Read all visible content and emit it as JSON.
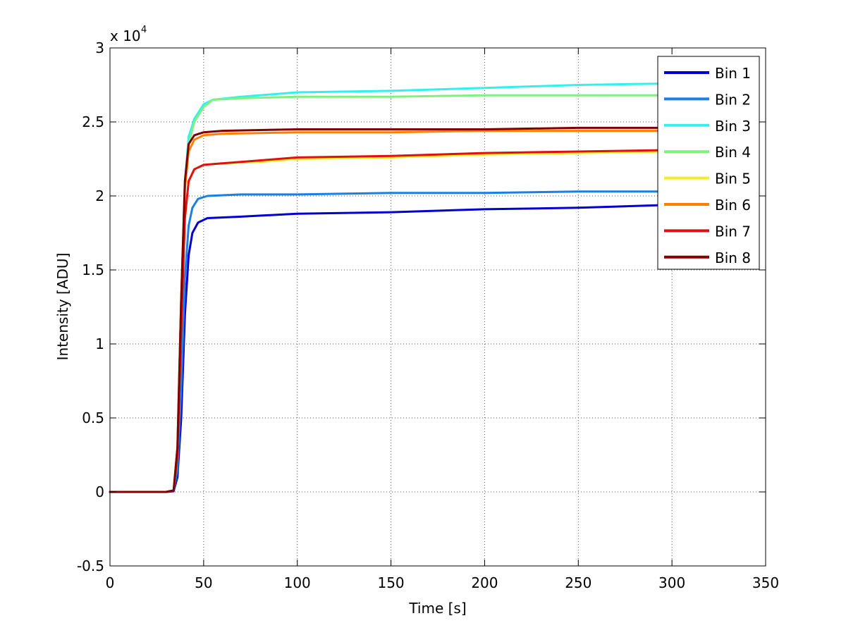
{
  "chart_data": {
    "type": "line",
    "xlabel": "Time [s]",
    "ylabel": "Intensity [ADU]",
    "exponent_label": "x 10",
    "exponent_power": "4",
    "xlim": [
      0,
      350
    ],
    "ylim": [
      -0.5,
      3
    ],
    "xticks": [
      0,
      50,
      100,
      150,
      200,
      250,
      300,
      350
    ],
    "yticks": [
      -0.5,
      0,
      0.5,
      1,
      1.5,
      2,
      2.5,
      3
    ],
    "ytick_labels": [
      "-0.5",
      "0",
      "0.5",
      "1",
      "1.5",
      "2",
      "2.5",
      "3"
    ],
    "grid": true,
    "legend_position": "top-right",
    "series": [
      {
        "name": "Bin 1",
        "color": "#0000d0",
        "points": [
          [
            0,
            0
          ],
          [
            30,
            0
          ],
          [
            34,
            0.005
          ],
          [
            36,
            0.1
          ],
          [
            38,
            0.5
          ],
          [
            40,
            1.2
          ],
          [
            42,
            1.6
          ],
          [
            44,
            1.75
          ],
          [
            47,
            1.82
          ],
          [
            52,
            1.85
          ],
          [
            70,
            1.86
          ],
          [
            100,
            1.88
          ],
          [
            150,
            1.89
          ],
          [
            200,
            1.91
          ],
          [
            250,
            1.92
          ],
          [
            300,
            1.94
          ]
        ]
      },
      {
        "name": "Bin 2",
        "color": "#1a7fe6",
        "points": [
          [
            0,
            0
          ],
          [
            30,
            0
          ],
          [
            34,
            0.01
          ],
          [
            36,
            0.15
          ],
          [
            38,
            0.7
          ],
          [
            40,
            1.45
          ],
          [
            42,
            1.8
          ],
          [
            44,
            1.92
          ],
          [
            47,
            1.98
          ],
          [
            52,
            2.0
          ],
          [
            70,
            2.01
          ],
          [
            100,
            2.01
          ],
          [
            150,
            2.02
          ],
          [
            200,
            2.02
          ],
          [
            250,
            2.03
          ],
          [
            300,
            2.03
          ]
        ]
      },
      {
        "name": "Bin 3",
        "color": "#33f0f0",
        "points": [
          [
            0,
            0
          ],
          [
            30,
            0
          ],
          [
            34,
            0.01
          ],
          [
            36,
            0.3
          ],
          [
            38,
            1.3
          ],
          [
            40,
            2.1
          ],
          [
            42,
            2.4
          ],
          [
            45,
            2.52
          ],
          [
            50,
            2.62
          ],
          [
            55,
            2.65
          ],
          [
            70,
            2.67
          ],
          [
            100,
            2.7
          ],
          [
            150,
            2.71
          ],
          [
            200,
            2.73
          ],
          [
            250,
            2.75
          ],
          [
            300,
            2.76
          ]
        ]
      },
      {
        "name": "Bin 4",
        "color": "#80f080",
        "points": [
          [
            0,
            0
          ],
          [
            30,
            0
          ],
          [
            34,
            0.01
          ],
          [
            36,
            0.3
          ],
          [
            38,
            1.3
          ],
          [
            40,
            2.1
          ],
          [
            42,
            2.35
          ],
          [
            45,
            2.5
          ],
          [
            50,
            2.6
          ],
          [
            55,
            2.65
          ],
          [
            70,
            2.66
          ],
          [
            100,
            2.67
          ],
          [
            150,
            2.67
          ],
          [
            200,
            2.68
          ],
          [
            250,
            2.68
          ],
          [
            300,
            2.68
          ]
        ]
      },
      {
        "name": "Bin 5",
        "color": "#f0f020",
        "points": [
          [
            0,
            0
          ],
          [
            30,
            0
          ],
          [
            34,
            0.01
          ],
          [
            36,
            0.25
          ],
          [
            38,
            1.1
          ],
          [
            40,
            1.85
          ],
          [
            42,
            2.1
          ],
          [
            45,
            2.18
          ],
          [
            50,
            2.21
          ],
          [
            60,
            2.22
          ],
          [
            80,
            2.23
          ],
          [
            100,
            2.25
          ],
          [
            150,
            2.26
          ],
          [
            200,
            2.28
          ],
          [
            250,
            2.29
          ],
          [
            300,
            2.3
          ]
        ]
      },
      {
        "name": "Bin 6",
        "color": "#ff8000",
        "points": [
          [
            0,
            0
          ],
          [
            30,
            0
          ],
          [
            34,
            0.01
          ],
          [
            36,
            0.3
          ],
          [
            38,
            1.3
          ],
          [
            40,
            2.05
          ],
          [
            42,
            2.3
          ],
          [
            45,
            2.38
          ],
          [
            50,
            2.41
          ],
          [
            60,
            2.42
          ],
          [
            100,
            2.43
          ],
          [
            150,
            2.43
          ],
          [
            200,
            2.44
          ],
          [
            250,
            2.44
          ],
          [
            300,
            2.44
          ]
        ]
      },
      {
        "name": "Bin 7",
        "color": "#e01010",
        "points": [
          [
            0,
            0
          ],
          [
            30,
            0
          ],
          [
            34,
            0.01
          ],
          [
            36,
            0.25
          ],
          [
            38,
            1.1
          ],
          [
            40,
            1.85
          ],
          [
            42,
            2.1
          ],
          [
            45,
            2.18
          ],
          [
            50,
            2.21
          ],
          [
            60,
            2.22
          ],
          [
            80,
            2.24
          ],
          [
            100,
            2.26
          ],
          [
            150,
            2.27
          ],
          [
            200,
            2.29
          ],
          [
            250,
            2.3
          ],
          [
            300,
            2.31
          ]
        ]
      },
      {
        "name": "Bin 8",
        "color": "#800000",
        "points": [
          [
            0,
            0
          ],
          [
            30,
            0
          ],
          [
            34,
            0.01
          ],
          [
            36,
            0.3
          ],
          [
            38,
            1.3
          ],
          [
            40,
            2.1
          ],
          [
            42,
            2.35
          ],
          [
            45,
            2.41
          ],
          [
            50,
            2.43
          ],
          [
            60,
            2.44
          ],
          [
            100,
            2.45
          ],
          [
            150,
            2.45
          ],
          [
            200,
            2.45
          ],
          [
            250,
            2.46
          ],
          [
            300,
            2.46
          ]
        ]
      }
    ]
  }
}
